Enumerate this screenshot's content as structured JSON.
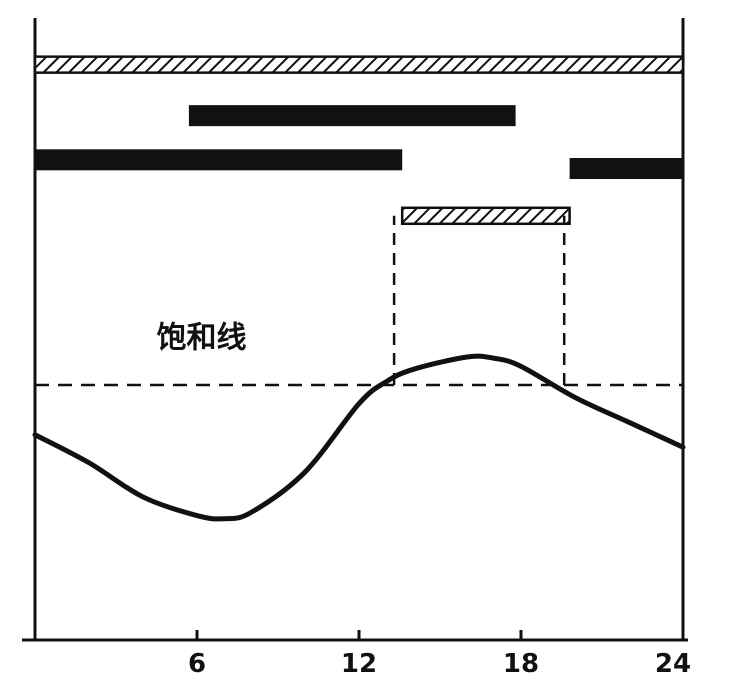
{
  "chart_data": {
    "type": "line",
    "title": "",
    "xlabel": "",
    "ylabel": "",
    "xlim": [
      0,
      24
    ],
    "ylim": [
      0,
      100
    ],
    "xticks": [
      6,
      12,
      18,
      24
    ],
    "xtick_labels": [
      "6",
      "12",
      "18",
      "24"
    ],
    "grid": false,
    "colors": {
      "ink": "#111111",
      "hatch_bg": "#ffffff"
    },
    "annotations": [
      {
        "text": "饱和线",
        "x": 4.5,
        "y": 47
      }
    ],
    "saturation_line": {
      "y": 41
    },
    "series": [
      {
        "x": [
          0,
          2,
          4,
          6,
          7,
          8,
          10,
          12,
          13,
          14,
          16,
          17,
          18,
          20,
          22,
          24
        ],
        "values": [
          33,
          28.5,
          23,
          20,
          19.5,
          20.5,
          27,
          38,
          41.5,
          43.5,
          45.5,
          45.3,
          44,
          39,
          35,
          31
        ]
      }
    ],
    "bars": [
      {
        "kind": "hatched",
        "start": 0,
        "end": 24,
        "level": 92.5
      },
      {
        "kind": "solid",
        "start": 5.7,
        "end": 17.8,
        "level": 84.3
      },
      {
        "kind": "solid",
        "start": 0,
        "end": 13.6,
        "level": 77.2
      },
      {
        "kind": "solid",
        "start": 19.8,
        "end": 24,
        "level": 75.8
      },
      {
        "kind": "hatched",
        "start": 13.6,
        "end": 19.8,
        "level": 68.2
      }
    ],
    "dashed_verticals": [
      {
        "x": 13.3,
        "from": 41,
        "to": 68.2
      },
      {
        "x": 19.6,
        "from": 41,
        "to": 68.2
      }
    ]
  }
}
